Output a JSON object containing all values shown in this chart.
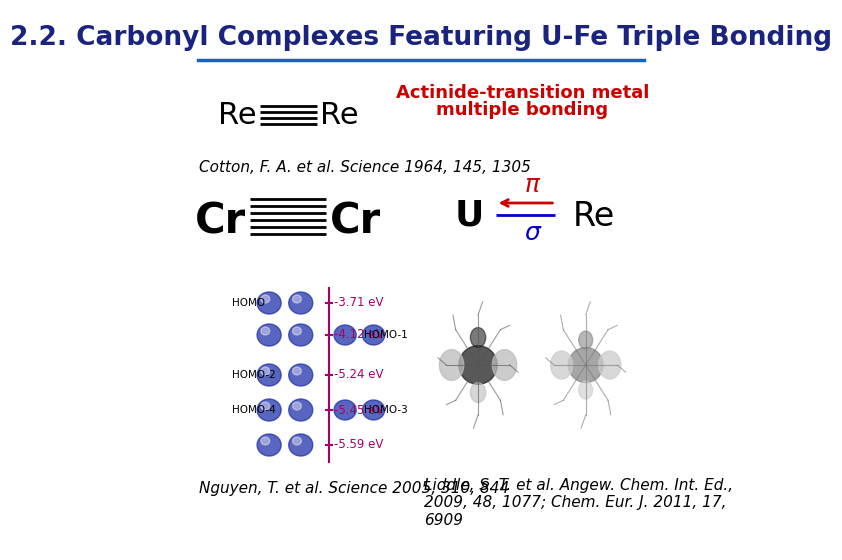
{
  "title": "2.2. Carbonyl Complexes Featuring U-Fe Triple Bonding",
  "title_color": "#1a237e",
  "title_fontsize": 19,
  "bg_color": "#ffffff",
  "divider_color": "#1565c0",
  "re_re_label_left": "Re",
  "re_re_label_right": "Re",
  "cr_cr_label_left": "Cr",
  "cr_cr_label_right": "Cr",
  "actinide_text_line1": "Actinide-transition metal",
  "actinide_text_line2": "multiple bonding",
  "actinide_text_color": "#cc0000",
  "actinide_text_fontsize": 13,
  "cotton_ref": "Cotton, F. A. et al. Science 1964, 145, 1305",
  "cotton_ref_fontsize": 11,
  "nguyen_ref": "Nguyen, T. et al. Science 2005, 310, 844",
  "nguyen_ref_fontsize": 11,
  "liddle_ref": "Liddle, S. T. et al. Angew. Chem. Int. Ed.,\n2009, 48, 1077; Chem. Eur. J. 2011, 17,\n6909",
  "liddle_ref_fontsize": 11,
  "u_label": "U",
  "re2_label": "Re",
  "pi_label": "π",
  "sigma_label": "σ",
  "pi_color": "#cc0000",
  "sigma_color": "#0000cc",
  "arrow_color": "#cc0000",
  "bond_line_color": "#0000cc",
  "mo_energies": [
    "-3.71 eV",
    "-4.12 eV",
    "-5.24 eV",
    "-5.45 eV",
    "-5.59 eV"
  ],
  "mo_labels_left": [
    "HOMO",
    "",
    "HOMO-2",
    "HOMO-4",
    ""
  ],
  "mo_labels_right": [
    "",
    "HOMO-1",
    "",
    "HOMO-3",
    ""
  ],
  "mo_energy_color": "#aa0066",
  "mo_line_color": "#aa0066"
}
